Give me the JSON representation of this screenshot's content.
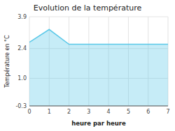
{
  "chart_data": {
    "type": "area",
    "title": "Evolution de la température",
    "x_label": "heure par heure",
    "y_label": "Température en °C",
    "x": [
      0,
      1,
      2,
      3,
      4,
      5,
      6,
      7
    ],
    "values": [
      2.7,
      3.3,
      2.6,
      2.6,
      2.6,
      2.6,
      2.6,
      2.6
    ],
    "xlim": [
      0,
      7
    ],
    "ylim": [
      -0.3,
      3.9
    ],
    "xticks": [
      0,
      1,
      2,
      3,
      4,
      5,
      6,
      7
    ],
    "yticks": [
      -0.3,
      {
        "value": 1.0,
        "label": "1.0"
      },
      2.4,
      3.9
    ],
    "color": "#5bc8e8",
    "grid": true
  }
}
